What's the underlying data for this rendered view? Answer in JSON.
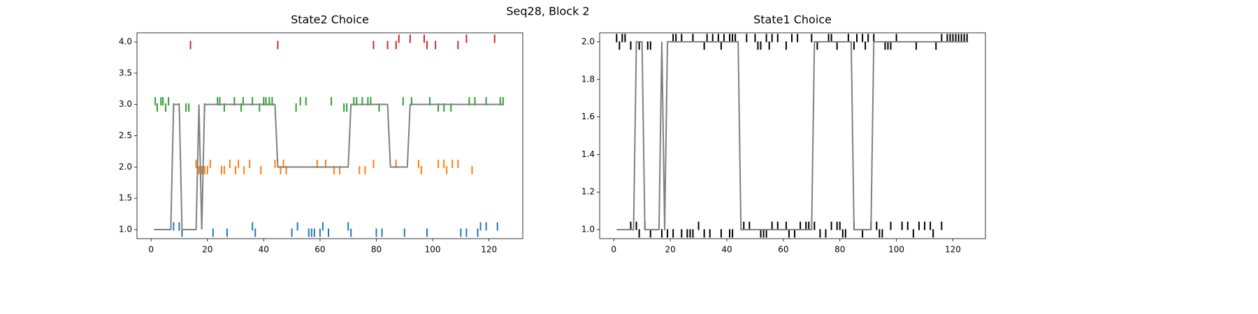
{
  "title": "Seq28, Block 2",
  "chart_data": [
    {
      "type": "line",
      "title": "State2 Choice",
      "xlim": [
        -5,
        132
      ],
      "xticks": [
        0,
        20,
        40,
        60,
        80,
        100,
        120
      ],
      "ylim": [
        0.855,
        4.145
      ],
      "yticks": [
        {
          "value": 1,
          "label": "1.0"
        },
        {
          "value": 1.5,
          "label": "1.5"
        },
        {
          "value": 2,
          "label": "2.0"
        },
        {
          "value": 2.5,
          "label": "2.5"
        },
        {
          "value": 3,
          "label": "3.0"
        },
        {
          "value": 3.5,
          "label": "3.5"
        },
        {
          "value": 4,
          "label": "4.0"
        }
      ],
      "series": [
        {
          "type": "scatter",
          "color": "#1f77b4",
          "x": [
            8,
            10,
            11,
            22,
            27,
            36,
            37,
            50,
            52,
            56,
            57,
            58,
            60,
            61,
            63,
            70,
            71,
            80,
            82,
            90,
            98,
            110,
            112,
            116,
            117,
            119,
            123
          ],
          "values": [
            1.05,
            1.05,
            0.95,
            0.95,
            0.95,
            1.05,
            0.95,
            0.95,
            1.05,
            0.95,
            0.95,
            0.95,
            0.95,
            1.05,
            0.95,
            1.05,
            0.95,
            0.95,
            0.95,
            0.95,
            0.95,
            0.95,
            0.95,
            0.95,
            1.05,
            1.05,
            1.05
          ]
        },
        {
          "type": "scatter",
          "color": "#ff7f0e",
          "x": [
            16,
            17,
            18,
            19,
            20,
            21,
            25,
            26,
            28,
            30,
            31,
            33,
            35,
            39,
            44,
            46,
            47,
            48,
            59,
            62,
            65,
            67,
            74,
            76,
            79,
            87,
            95,
            96,
            102,
            104,
            105,
            107,
            109,
            114
          ],
          "values": [
            2.05,
            1.95,
            1.95,
            1.95,
            1.95,
            2.05,
            1.95,
            1.95,
            2.05,
            1.95,
            2.05,
            1.95,
            2.05,
            1.95,
            2.05,
            1.95,
            2.05,
            1.95,
            2.05,
            2.05,
            1.95,
            1.95,
            1.95,
            1.95,
            2.05,
            2.05,
            2.05,
            1.95,
            2.05,
            2.05,
            1.95,
            2.05,
            2.05,
            1.95
          ]
        },
        {
          "type": "scatter",
          "color": "#2ca02c",
          "x": [
            1.5,
            2.2,
            3.5,
            4.2,
            5.2,
            6.2,
            8,
            10,
            12.4,
            13.4,
            19,
            23.6,
            24.4,
            26,
            29.6,
            32,
            32.7,
            36,
            38.5,
            40,
            40.8,
            42,
            43,
            51.5,
            53,
            55,
            64,
            68.5,
            69.5,
            72,
            73,
            75,
            77,
            78,
            81,
            89.5,
            92.5,
            99,
            102,
            104,
            106.5,
            113,
            115,
            119,
            124,
            125
          ],
          "values": [
            3.05,
            2.95,
            3.05,
            3.05,
            2.95,
            3.05,
            2.95,
            2.95,
            2.95,
            2.95,
            2.95,
            3.05,
            3.05,
            2.95,
            3.05,
            2.95,
            3.05,
            3.05,
            2.95,
            3.05,
            3.05,
            3.05,
            3.05,
            2.95,
            3.05,
            3.05,
            3.05,
            2.95,
            2.95,
            3.05,
            3.05,
            3.05,
            3.05,
            3.05,
            2.95,
            3.05,
            3.05,
            3.05,
            2.95,
            2.95,
            2.95,
            3.05,
            3.05,
            3.05,
            3.05,
            3.05
          ]
        },
        {
          "type": "scatter",
          "color": "#d62728",
          "x": [
            14,
            45,
            79,
            84,
            87,
            88,
            92,
            97,
            98,
            101,
            109,
            112,
            122
          ],
          "values": [
            3.95,
            3.95,
            3.95,
            3.95,
            3.95,
            4.05,
            4.05,
            4.05,
            3.95,
            3.95,
            3.95,
            4.05,
            4.05
          ]
        },
        {
          "type": "line",
          "color": "#808080",
          "x": [
            1,
            7,
            8,
            10,
            11,
            16,
            17,
            18,
            19,
            44,
            45,
            70,
            71,
            84,
            85,
            91,
            92,
            125
          ],
          "values": [
            1,
            1,
            3,
            3,
            1,
            1,
            3,
            1,
            3,
            3,
            2,
            2,
            3,
            3,
            2,
            2,
            3,
            3
          ]
        }
      ]
    },
    {
      "type": "line",
      "title": "State1 Choice",
      "xlim": [
        -5,
        131.5
      ],
      "xticks": [
        0,
        20,
        40,
        60,
        80,
        100,
        120
      ],
      "ylim": [
        0.952,
        2.048
      ],
      "yticks": [
        {
          "value": 1,
          "label": "1.0"
        },
        {
          "value": 1.2,
          "label": "1.2"
        },
        {
          "value": 1.4,
          "label": "1.4"
        },
        {
          "value": 1.6,
          "label": "1.6"
        },
        {
          "value": 1.8,
          "label": "1.8"
        },
        {
          "value": 2,
          "label": "2.0"
        }
      ],
      "series": [
        {
          "type": "scatter",
          "color": "#000000",
          "x": [
            1,
            2,
            3,
            4,
            6,
            9,
            12,
            13,
            21,
            22,
            24,
            28,
            32,
            33,
            35,
            37,
            38,
            39,
            41,
            42,
            43,
            47,
            50,
            51,
            52,
            54,
            55,
            56,
            58,
            61,
            63,
            65,
            70,
            72,
            76,
            77,
            79,
            83,
            85,
            86,
            88,
            89,
            90,
            92,
            96,
            97,
            98,
            100,
            107,
            114,
            116,
            118,
            119,
            120,
            121,
            122,
            123,
            124,
            125
          ],
          "values": [
            2.02,
            1.98,
            2.02,
            2.02,
            1.98,
            1.98,
            1.98,
            1.98,
            2.02,
            2.02,
            2.02,
            2.02,
            1.98,
            2.02,
            2.02,
            2.02,
            1.98,
            2.02,
            2.02,
            2.02,
            2.02,
            2.02,
            2.02,
            1.98,
            1.98,
            2.02,
            1.98,
            2.02,
            2.02,
            1.98,
            2.02,
            2.02,
            2.02,
            1.98,
            2.02,
            2.02,
            1.98,
            2.02,
            1.98,
            2.02,
            2.02,
            1.98,
            2.02,
            2.02,
            1.98,
            1.98,
            1.98,
            2.02,
            1.98,
            1.98,
            2.02,
            2.02,
            2.02,
            2.02,
            2.02,
            2.02,
            2.02,
            2.02,
            2.02
          ]
        },
        {
          "type": "scatter",
          "color": "#000000",
          "x": [
            6,
            8,
            9,
            11,
            13,
            17,
            18,
            19,
            21,
            24,
            26,
            27,
            28,
            30,
            32,
            34,
            38,
            41,
            42,
            46,
            48,
            52,
            53,
            54,
            56,
            58,
            61,
            62,
            64,
            66,
            68,
            69,
            71,
            73,
            75,
            77,
            79,
            80,
            81,
            82,
            85,
            88,
            91,
            93,
            94,
            95,
            98,
            102,
            104,
            106,
            108,
            110,
            112,
            113,
            116
          ],
          "values": [
            1.02,
            1.02,
            0.98,
            1.02,
            0.98,
            0.98,
            1.02,
            0.98,
            0.98,
            0.98,
            0.98,
            0.98,
            0.98,
            1.02,
            0.98,
            0.98,
            0.98,
            0.98,
            0.98,
            1.02,
            1.02,
            0.98,
            0.98,
            0.98,
            1.02,
            1.02,
            1.02,
            0.98,
            0.98,
            1.02,
            1.02,
            1.02,
            1.02,
            0.98,
            0.98,
            1.02,
            1.02,
            1.02,
            0.98,
            0.98,
            1.02,
            0.98,
            1.02,
            1.02,
            0.98,
            0.98,
            1.02,
            1.02,
            1.02,
            0.98,
            1.02,
            1.02,
            1.02,
            0.98,
            1.02
          ]
        },
        {
          "type": "line",
          "color": "#808080",
          "x": [
            1,
            7,
            8,
            10,
            11,
            16,
            17,
            18,
            19,
            44,
            45,
            70,
            71,
            84,
            85,
            91,
            92,
            125
          ],
          "values": [
            1,
            1,
            2,
            2,
            1,
            1,
            2,
            1,
            2,
            2,
            1,
            1,
            2,
            2,
            1,
            1,
            2,
            2
          ]
        }
      ]
    }
  ]
}
